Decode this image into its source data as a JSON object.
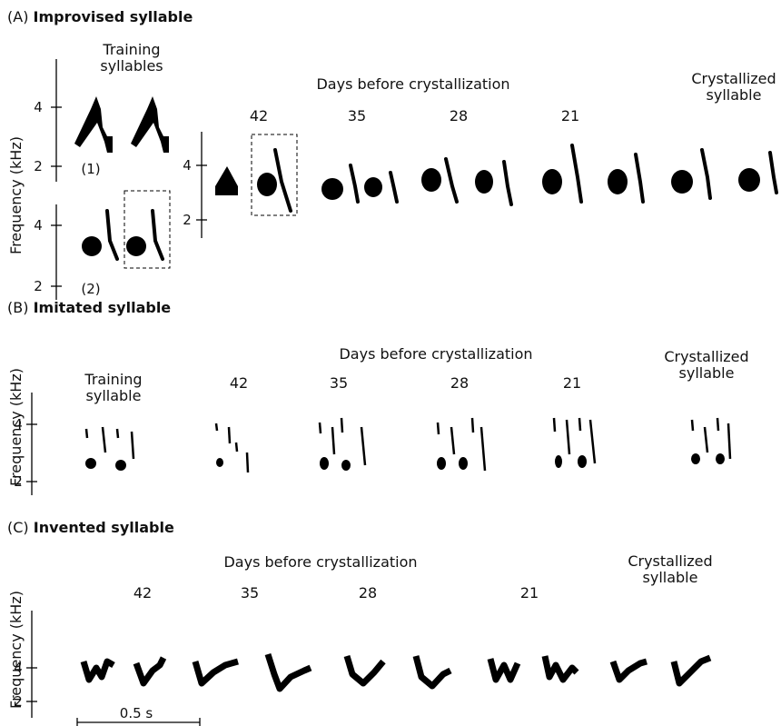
{
  "panel_a": {
    "label": "(A)",
    "title": "Improvised syllable",
    "y_axis_label": "Frequency (kHz)",
    "reference_label": "Training syllables",
    "reference_parts": [
      "(1)",
      "(2)"
    ],
    "reference_axes": [
      {
        "ticks": [
          4,
          2
        ]
      },
      {
        "ticks": [
          4,
          2
        ]
      }
    ],
    "days_heading": "Days before crystallization",
    "days_axis_ticks": [
      4,
      2
    ],
    "days": [
      42,
      35,
      28,
      21
    ],
    "crystallized_label": "Crystallized syllable"
  },
  "panel_b": {
    "label": "(B)",
    "title": "Imitated syllable",
    "y_axis_label": "Frequency (kHz)",
    "reference_label": "Training syllable",
    "axis_ticks": [
      4,
      2
    ],
    "days_heading": "Days before crystallization",
    "days": [
      42,
      35,
      28,
      21
    ],
    "crystallized_label": "Crystallized syllable"
  },
  "panel_c": {
    "label": "(C)",
    "title": "Invented syllable",
    "y_axis_label": "Frequency (kHz)",
    "axis_ticks": [
      4,
      2
    ],
    "days_heading": "Days before crystallization",
    "days": [
      42,
      35,
      28,
      21
    ],
    "crystallized_label": "Crystallized syllable",
    "scale_bar_label": "0.5 s"
  }
}
